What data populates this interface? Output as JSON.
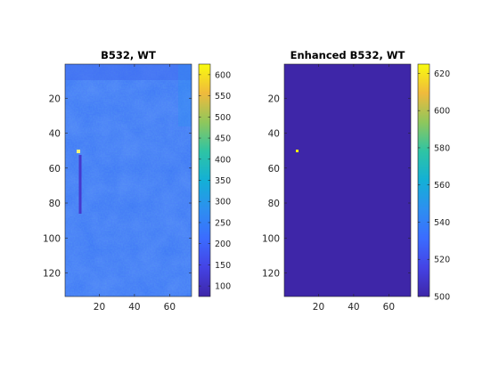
{
  "chart_data": [
    {
      "type": "heatmap",
      "title": "B532, WT",
      "x_ticks": [
        20,
        40,
        60
      ],
      "y_ticks": [
        20,
        40,
        60,
        80,
        100,
        120
      ],
      "xlim": [
        0.5,
        72.5
      ],
      "ylim": [
        0.5,
        133.5
      ],
      "y_direction": "reversed",
      "colormap": "parula",
      "colorbar": {
        "ticks": [
          100,
          150,
          200,
          250,
          300,
          350,
          400,
          450,
          500,
          550,
          600
        ],
        "limits": [
          75,
          625
        ]
      },
      "description_values": {
        "background_level": 215,
        "bright_pixel": {
          "x": 8,
          "y": 50,
          "value": 620
        },
        "dark_streak": {
          "x": 9,
          "y_range": [
            52,
            85
          ],
          "value": 120
        }
      }
    },
    {
      "type": "heatmap",
      "title": "Enhanced B532, WT",
      "x_ticks": [
        20,
        40,
        60
      ],
      "y_ticks": [
        20,
        40,
        60,
        80,
        100,
        120
      ],
      "xlim": [
        0.5,
        72.5
      ],
      "ylim": [
        0.5,
        133.5
      ],
      "y_direction": "reversed",
      "colormap": "parula",
      "colorbar": {
        "ticks": [
          500,
          520,
          540,
          560,
          580,
          600,
          620
        ],
        "limits": [
          500,
          625
        ]
      },
      "description_values": {
        "background_level": 500,
        "bright_pixel": {
          "x": 8,
          "y": 50,
          "value": 625
        }
      }
    }
  ]
}
